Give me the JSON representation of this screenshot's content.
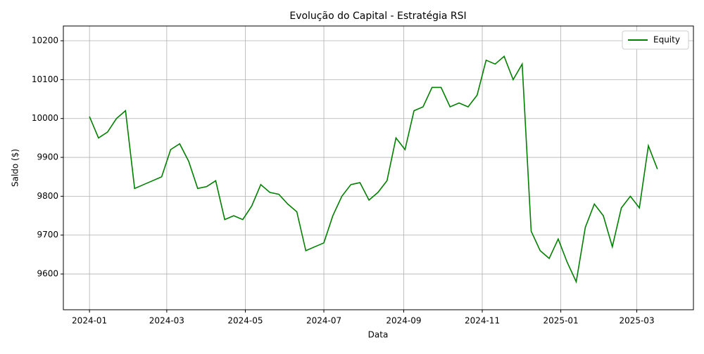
{
  "chart_data": {
    "type": "line",
    "title": "Evolução do Capital - Estratégia RSI",
    "x_label": "Data",
    "y_label": "Saldo ($)",
    "series": [
      {
        "name": "Equity",
        "color": "#008000",
        "values": [
          10005,
          9950,
          9965,
          10000,
          10020,
          9820,
          9830,
          9840,
          9850,
          9920,
          9935,
          9890,
          9820,
          9825,
          9840,
          9740,
          9750,
          9740,
          9775,
          9830,
          9810,
          9805,
          9780,
          9760,
          9660,
          9670,
          9680,
          9750,
          9800,
          9830,
          9835,
          9790,
          9810,
          9840,
          9950,
          9920,
          10020,
          10030,
          10080,
          10080,
          10030,
          10040,
          10030,
          10060,
          10150,
          10140,
          10160,
          10100,
          10140,
          9710,
          9660,
          9640,
          9690,
          9630,
          9580,
          9720,
          9780,
          9750,
          9670,
          9770,
          9800,
          9770,
          9930,
          9870
        ]
      }
    ],
    "xlim": [
      -2.9,
      67.0
    ],
    "xticks": [
      {
        "value": 0,
        "label": "2024-01"
      },
      {
        "value": 8.571,
        "label": "2024-03"
      },
      {
        "value": 17.286,
        "label": "2024-05"
      },
      {
        "value": 26,
        "label": "2024-07"
      },
      {
        "value": 34.857,
        "label": "2024-09"
      },
      {
        "value": 43.571,
        "label": "2024-11"
      },
      {
        "value": 52.286,
        "label": "2025-01"
      },
      {
        "value": 60.714,
        "label": "2025-03"
      }
    ],
    "ylim": [
      9508,
      10238
    ],
    "yticks": [
      9600,
      9700,
      9800,
      9900,
      10000,
      10100,
      10200
    ],
    "grid": true,
    "legend": "upper-right"
  }
}
